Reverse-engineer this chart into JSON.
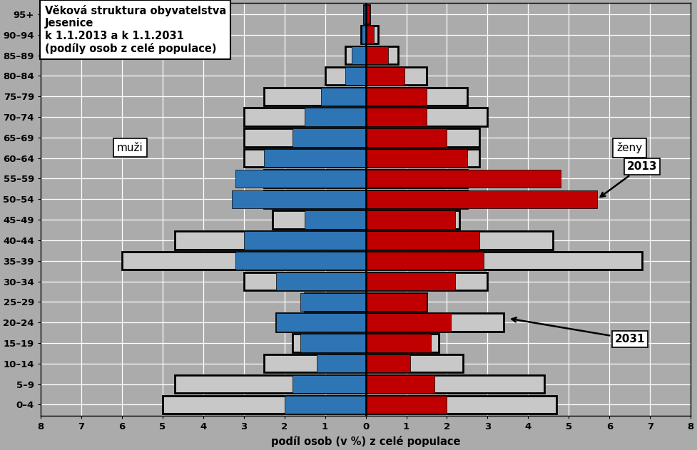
{
  "age_groups": [
    "0–4",
    "5–9",
    "10–14",
    "15–19",
    "20–24",
    "25–29",
    "30–34",
    "35–39",
    "40–44",
    "45–49",
    "50–54",
    "55–59",
    "60–64",
    "65–69",
    "70–74",
    "75–79",
    "80–84",
    "85–89",
    "90–94",
    "95+"
  ],
  "males_2013": [
    2.0,
    1.8,
    1.2,
    1.6,
    2.2,
    1.6,
    2.2,
    3.2,
    3.0,
    1.5,
    3.3,
    3.2,
    2.5,
    1.8,
    1.5,
    1.1,
    0.5,
    0.35,
    0.1,
    0.05
  ],
  "females_2013": [
    2.0,
    1.7,
    1.1,
    1.6,
    2.1,
    1.5,
    2.2,
    2.9,
    2.8,
    2.2,
    5.7,
    4.8,
    2.5,
    2.0,
    1.5,
    1.5,
    0.95,
    0.55,
    0.2,
    0.1
  ],
  "males_2031": [
    5.0,
    4.7,
    2.5,
    1.8,
    2.2,
    1.5,
    3.0,
    6.0,
    4.7,
    2.3,
    2.5,
    2.5,
    3.0,
    3.0,
    3.0,
    2.5,
    1.0,
    0.5,
    0.12,
    0.05
  ],
  "females_2031": [
    4.7,
    4.4,
    2.4,
    1.8,
    3.4,
    1.5,
    3.0,
    6.8,
    4.6,
    2.3,
    2.5,
    2.5,
    2.8,
    2.8,
    3.0,
    2.5,
    1.5,
    0.8,
    0.3,
    0.1
  ],
  "title": "Věková struktura obyvatelstva\nJesenice\nk 1.1.2013 a k 1.1.2031\n(podíly osob z celé populace)",
  "xlabel": "podíl osob (v %) z celé populace",
  "xlim": 8,
  "color_male_2013": "#2E75B6",
  "color_female_2013": "#C00000",
  "color_2031_fill": "#C8C8C8",
  "color_2031_edge": "#000000",
  "background_color": "#ABABAB",
  "grid_color": "#FFFFFF",
  "bar_height": 0.88,
  "label_muzi": "muži",
  "label_zeny": "ženy",
  "label_2013": "2013",
  "label_2031": "2031"
}
